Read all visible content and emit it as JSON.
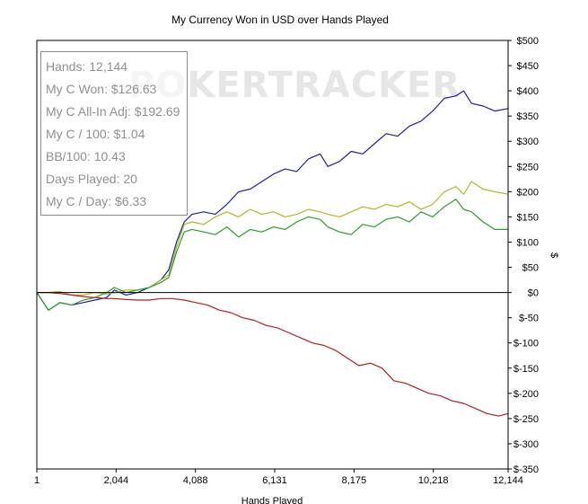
{
  "chart_data": {
    "type": "line",
    "title": "My Currency Won in USD over Hands Played",
    "xlabel": "Hands Played",
    "ylabel": "$",
    "xlim": [
      1,
      12144
    ],
    "ylim": [
      -350,
      500
    ],
    "x_ticks": [
      "1",
      "2,044",
      "4,088",
      "6,131",
      "8,175",
      "10,218",
      "12,144"
    ],
    "y_ticks": [
      "$500",
      "$450",
      "$400",
      "$350",
      "$300",
      "$250",
      "$200",
      "$150",
      "$100",
      "$50",
      "$0",
      "$-50",
      "$-100",
      "$-150",
      "$-200",
      "$-250",
      "$-300",
      "$-350"
    ],
    "y_tick_values": [
      500,
      450,
      400,
      350,
      300,
      250,
      200,
      150,
      100,
      50,
      0,
      -50,
      -100,
      -150,
      -200,
      -250,
      -300,
      -350
    ],
    "x_tick_values": [
      1,
      2044,
      4088,
      6131,
      8175,
      10218,
      12144
    ],
    "watermark": "POKERTRACKER",
    "stats": [
      "Hands: 12,144",
      "My C Won: $126.63",
      "My C All-In Adj: $192.69",
      "My C / 100: $1.04",
      "BB/100: 10.43",
      "Days Played: 20",
      "My C / Day: $6.33"
    ],
    "grid": false,
    "series": [
      {
        "color": "#1f1f9e",
        "x": [
          1,
          300,
          600,
          900,
          1200,
          1500,
          1800,
          2000,
          2300,
          2600,
          2900,
          3200,
          3400,
          3600,
          3800,
          4000,
          4300,
          4600,
          4900,
          5200,
          5500,
          5800,
          6100,
          6400,
          6700,
          7000,
          7300,
          7500,
          7800,
          8100,
          8400,
          8700,
          9000,
          9300,
          9600,
          9900,
          10200,
          10500,
          10800,
          11000,
          11200,
          11500,
          11800,
          12144
        ],
        "y": [
          0,
          -35,
          -20,
          -25,
          -20,
          -15,
          -10,
          5,
          -5,
          0,
          10,
          25,
          45,
          100,
          140,
          155,
          160,
          155,
          175,
          200,
          205,
          220,
          235,
          245,
          240,
          265,
          275,
          250,
          260,
          280,
          275,
          295,
          315,
          310,
          330,
          340,
          360,
          385,
          390,
          400,
          375,
          370,
          360,
          365
        ]
      },
      {
        "color": "#b4b42a",
        "x": [
          1,
          300,
          600,
          900,
          1200,
          1500,
          1800,
          2000,
          2300,
          2600,
          2900,
          3200,
          3400,
          3600,
          3800,
          4000,
          4300,
          4600,
          4900,
          5200,
          5500,
          5800,
          6100,
          6400,
          6700,
          7000,
          7300,
          7500,
          7800,
          8100,
          8400,
          8700,
          9000,
          9300,
          9600,
          9900,
          10200,
          10500,
          10800,
          11000,
          11200,
          11500,
          11800,
          12144
        ],
        "y": [
          0,
          0,
          2,
          -5,
          -5,
          0,
          -3,
          0,
          5,
          5,
          10,
          25,
          35,
          90,
          135,
          140,
          135,
          150,
          160,
          150,
          165,
          155,
          160,
          150,
          155,
          165,
          160,
          155,
          150,
          160,
          170,
          165,
          175,
          170,
          180,
          165,
          175,
          200,
          210,
          195,
          220,
          205,
          200,
          195
        ]
      },
      {
        "color": "#2b9e2b",
        "x": [
          1,
          300,
          600,
          900,
          1200,
          1500,
          1800,
          2000,
          2300,
          2600,
          2900,
          3200,
          3400,
          3600,
          3800,
          4000,
          4300,
          4600,
          4900,
          5200,
          5500,
          5800,
          6100,
          6400,
          6700,
          7000,
          7300,
          7500,
          7800,
          8100,
          8400,
          8700,
          9000,
          9300,
          9600,
          9900,
          10200,
          10500,
          10800,
          11000,
          11200,
          11500,
          11800,
          12144
        ],
        "y": [
          0,
          -35,
          -20,
          -25,
          -15,
          -10,
          0,
          10,
          0,
          5,
          10,
          20,
          30,
          80,
          120,
          125,
          120,
          115,
          130,
          110,
          125,
          120,
          130,
          125,
          140,
          150,
          145,
          130,
          120,
          115,
          135,
          130,
          145,
          150,
          140,
          160,
          150,
          170,
          185,
          165,
          160,
          140,
          125,
          125
        ]
      },
      {
        "color": "#aa2222",
        "x": [
          1,
          300,
          600,
          900,
          1200,
          1500,
          1800,
          2000,
          2300,
          2600,
          2900,
          3200,
          3500,
          3800,
          4100,
          4400,
          4700,
          5000,
          5300,
          5600,
          5900,
          6200,
          6500,
          6800,
          7100,
          7400,
          7700,
          8000,
          8300,
          8600,
          8900,
          9200,
          9500,
          9800,
          10100,
          10400,
          10700,
          11000,
          11300,
          11600,
          11900,
          12144
        ],
        "y": [
          0,
          0,
          -2,
          -5,
          -8,
          -10,
          -12,
          -12,
          -14,
          -15,
          -15,
          -12,
          -12,
          -15,
          -20,
          -25,
          -35,
          -40,
          -50,
          -55,
          -65,
          -70,
          -80,
          -90,
          -100,
          -105,
          -115,
          -130,
          -145,
          -140,
          -150,
          -175,
          -180,
          -190,
          -200,
          -205,
          -215,
          -220,
          -230,
          -240,
          -245,
          -240
        ]
      }
    ]
  }
}
